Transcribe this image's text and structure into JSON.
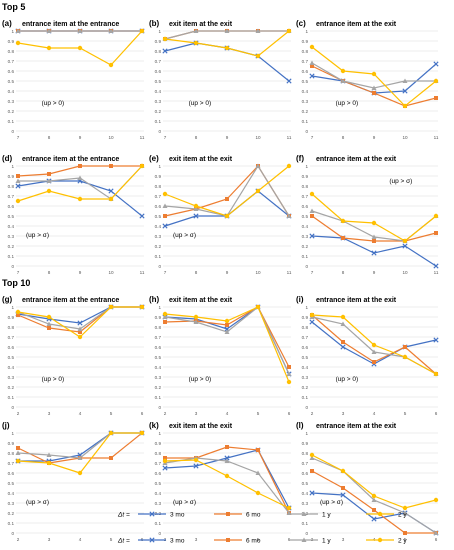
{
  "sections": {
    "top5": "Top 5",
    "top10": "Top 10"
  },
  "legend": {
    "label": "Δt =",
    "entries": [
      "3 mo",
      "6 mo",
      "1 y",
      "2 y"
    ],
    "colors": [
      "#4472c4",
      "#ed7d31",
      "#a5a5a5",
      "#ffc000"
    ]
  },
  "chart_data": [
    {
      "type": "line",
      "panel": "(a)",
      "title": "entrance item at the entrance",
      "annotation": "(up > 0)",
      "x": [
        7,
        8,
        9,
        10,
        11
      ],
      "ylim": [
        0,
        1
      ],
      "yticks": [
        0,
        0.1,
        0.2,
        0.3,
        0.4,
        0.5,
        0.6,
        0.7,
        0.8,
        0.9,
        1
      ],
      "series": [
        {
          "name": "3 mo",
          "values": [
            1,
            1,
            1,
            1,
            1
          ]
        },
        {
          "name": "6 mo",
          "values": [
            1,
            1,
            1,
            1,
            1
          ]
        },
        {
          "name": "1 y",
          "values": [
            1,
            1,
            1,
            1,
            1
          ]
        },
        {
          "name": "2 y",
          "values": [
            0.88,
            0.83,
            0.83,
            0.66,
            1
          ]
        }
      ]
    },
    {
      "type": "line",
      "panel": "(b)",
      "title": "exit item at the exit",
      "annotation": "(up > 0)",
      "x": [
        7,
        8,
        9,
        10,
        11
      ],
      "ylim": [
        0,
        1
      ],
      "yticks": [
        0,
        0.1,
        0.2,
        0.3,
        0.4,
        0.5,
        0.6,
        0.7,
        0.8,
        0.9,
        1
      ],
      "series": [
        {
          "name": "3 mo",
          "values": [
            0.8,
            0.88,
            0.83,
            0.75,
            0.5
          ]
        },
        {
          "name": "6 mo",
          "values": [
            0.92,
            1,
            1,
            1,
            1
          ]
        },
        {
          "name": "1 y",
          "values": [
            0.92,
            1,
            1,
            1,
            1
          ]
        },
        {
          "name": "2 y",
          "values": [
            0.92,
            0.88,
            0.83,
            0.75,
            1
          ]
        }
      ]
    },
    {
      "type": "line",
      "panel": "(c)",
      "title": "entrance  item at the exit",
      "annotation": "(up > 0)",
      "x": [
        7,
        8,
        9,
        10,
        11
      ],
      "ylim": [
        0,
        1
      ],
      "yticks": [
        0,
        0.1,
        0.2,
        0.3,
        0.4,
        0.5,
        0.6,
        0.7,
        0.8,
        0.9,
        1
      ],
      "series": [
        {
          "name": "3 mo",
          "values": [
            0.55,
            0.5,
            0.38,
            0.4,
            0.67
          ]
        },
        {
          "name": "6 mo",
          "values": [
            0.65,
            0.5,
            0.38,
            0.25,
            0.33
          ]
        },
        {
          "name": "1 y",
          "values": [
            0.68,
            0.5,
            0.43,
            0.5,
            0.5
          ]
        },
        {
          "name": "2 y",
          "values": [
            0.84,
            0.6,
            0.57,
            0.25,
            0.5
          ]
        }
      ]
    },
    {
      "type": "line",
      "panel": "(d)",
      "title": "entrance item at the entrance",
      "annotation": "(up > σ)",
      "x": [
        7,
        8,
        9,
        10,
        11
      ],
      "ylim": [
        0,
        1
      ],
      "yticks": [
        0,
        0.1,
        0.2,
        0.3,
        0.4,
        0.5,
        0.6,
        0.7,
        0.8,
        0.9,
        1
      ],
      "series": [
        {
          "name": "3 mo",
          "values": [
            0.8,
            0.85,
            0.85,
            0.75,
            0.5
          ]
        },
        {
          "name": "6 mo",
          "values": [
            0.9,
            0.92,
            1,
            1,
            1
          ]
        },
        {
          "name": "1 y",
          "values": [
            0.85,
            0.85,
            0.88,
            0.67,
            1
          ]
        },
        {
          "name": "2 y",
          "values": [
            0.65,
            0.75,
            0.67,
            0.67,
            1
          ]
        }
      ]
    },
    {
      "type": "line",
      "panel": "(e)",
      "title": "exit item at the exit",
      "annotation": "(up > σ)",
      "x": [
        7,
        8,
        9,
        10,
        11
      ],
      "ylim": [
        0,
        1
      ],
      "yticks": [
        0,
        0.1,
        0.2,
        0.3,
        0.4,
        0.5,
        0.6,
        0.7,
        0.8,
        0.9,
        1
      ],
      "series": [
        {
          "name": "3 mo",
          "values": [
            0.4,
            0.5,
            0.5,
            0.75,
            0.5
          ]
        },
        {
          "name": "6 mo",
          "values": [
            0.5,
            0.57,
            0.67,
            1,
            0.5
          ]
        },
        {
          "name": "1 y",
          "values": [
            0.6,
            0.57,
            0.5,
            1,
            0.5
          ]
        },
        {
          "name": "2 y",
          "values": [
            0.72,
            0.6,
            0.5,
            0.75,
            1
          ]
        }
      ]
    },
    {
      "type": "line",
      "panel": "(f)",
      "title": "entrance  item at the exit",
      "annotation": "(up > σ)",
      "x": [
        7,
        8,
        9,
        10,
        11
      ],
      "ylim": [
        0,
        1
      ],
      "yticks": [
        0,
        0.1,
        0.2,
        0.3,
        0.4,
        0.5,
        0.6,
        0.7,
        0.8,
        0.9,
        1
      ],
      "series": [
        {
          "name": "3 mo",
          "values": [
            0.3,
            0.28,
            0.13,
            0.2,
            0
          ]
        },
        {
          "name": "6 mo",
          "values": [
            0.5,
            0.28,
            0.25,
            0.25,
            0.33
          ]
        },
        {
          "name": "1 y",
          "values": [
            0.55,
            0.45,
            0.29,
            0.25,
            0.5
          ]
        },
        {
          "name": "2 y",
          "values": [
            0.72,
            0.45,
            0.43,
            0.25,
            0.5
          ]
        }
      ]
    },
    {
      "type": "line",
      "panel": "(g)",
      "title": "entrance item at the entrance",
      "annotation": "(up > 0)",
      "x": [
        2,
        3,
        4,
        5,
        6
      ],
      "ylim": [
        0,
        1
      ],
      "yticks": [
        0,
        0.1,
        0.2,
        0.3,
        0.4,
        0.5,
        0.6,
        0.7,
        0.8,
        0.9,
        1
      ],
      "series": [
        {
          "name": "3 mo",
          "values": [
            0.93,
            0.88,
            0.84,
            1,
            1
          ]
        },
        {
          "name": "6 mo",
          "values": [
            0.92,
            0.79,
            0.75,
            1,
            1
          ]
        },
        {
          "name": "1 y",
          "values": [
            0.95,
            0.83,
            0.78,
            1,
            1
          ]
        },
        {
          "name": "2 y",
          "values": [
            0.95,
            0.9,
            0.7,
            1,
            1
          ]
        }
      ]
    },
    {
      "type": "line",
      "panel": "(h)",
      "title": "exit item at the exit",
      "annotation": "(up > 0)",
      "x": [
        2,
        3,
        4,
        5,
        6
      ],
      "ylim": [
        0,
        1
      ],
      "yticks": [
        0,
        0.1,
        0.2,
        0.3,
        0.4,
        0.5,
        0.6,
        0.7,
        0.8,
        0.9,
        1
      ],
      "series": [
        {
          "name": "3 mo",
          "values": [
            0.9,
            0.88,
            0.78,
            1,
            0.33
          ]
        },
        {
          "name": "6 mo",
          "values": [
            0.85,
            0.86,
            0.82,
            1,
            0.4
          ]
        },
        {
          "name": "1 y",
          "values": [
            0.9,
            0.85,
            0.75,
            1,
            0.33
          ]
        },
        {
          "name": "2 y",
          "values": [
            0.93,
            0.9,
            0.86,
            1,
            0.25
          ]
        }
      ]
    },
    {
      "type": "line",
      "panel": "(i)",
      "title": "entrance item at the exit",
      "annotation": "(up > 0)",
      "x": [
        2,
        3,
        4,
        5,
        6
      ],
      "ylim": [
        0,
        1
      ],
      "yticks": [
        0,
        0.1,
        0.2,
        0.3,
        0.4,
        0.5,
        0.6,
        0.7,
        0.8,
        0.9,
        1
      ],
      "series": [
        {
          "name": "3 mo",
          "values": [
            0.85,
            0.6,
            0.43,
            0.6,
            0.67
          ]
        },
        {
          "name": "6 mo",
          "values": [
            0.92,
            0.65,
            0.45,
            0.6,
            0.33
          ]
        },
        {
          "name": "1 y",
          "values": [
            0.9,
            0.83,
            0.55,
            0.5,
            0.33
          ]
        },
        {
          "name": "2 y",
          "values": [
            0.92,
            0.9,
            0.62,
            0.5,
            0.33
          ]
        }
      ]
    },
    {
      "type": "line",
      "panel": "(j)",
      "title": "",
      "annotation": "(up > σ)",
      "x": [
        2,
        3,
        4,
        5,
        6
      ],
      "ylim": [
        0,
        1
      ],
      "yticks": [
        0,
        0.1,
        0.2,
        0.3,
        0.4,
        0.5,
        0.6,
        0.7,
        0.8,
        0.9,
        1
      ],
      "series": [
        {
          "name": "3 mo",
          "values": [
            0.72,
            0.72,
            0.78,
            1,
            1
          ]
        },
        {
          "name": "6 mo",
          "values": [
            0.85,
            0.7,
            0.75,
            0.75,
            1
          ]
        },
        {
          "name": "1 y",
          "values": [
            0.8,
            0.78,
            0.75,
            1,
            1
          ]
        },
        {
          "name": "2 y",
          "values": [
            0.72,
            0.7,
            0.6,
            1,
            1
          ]
        }
      ]
    },
    {
      "type": "line",
      "panel": "(k)",
      "title": "exit item at the exit",
      "annotation": "(up > σ)",
      "x": [
        2,
        3,
        4,
        5,
        6
      ],
      "ylim": [
        0,
        1
      ],
      "yticks": [
        0,
        0.1,
        0.2,
        0.3,
        0.4,
        0.5,
        0.6,
        0.7,
        0.8,
        0.9,
        1
      ],
      "series": [
        {
          "name": "3 mo",
          "values": [
            0.65,
            0.67,
            0.75,
            0.83,
            0.25
          ]
        },
        {
          "name": "6 mo",
          "values": [
            0.75,
            0.75,
            0.86,
            0.83,
            0.2
          ]
        },
        {
          "name": "1 y",
          "values": [
            0.7,
            0.75,
            0.72,
            0.6,
            0.2
          ]
        },
        {
          "name": "2 y",
          "values": [
            0.72,
            0.73,
            0.57,
            0.4,
            0.25
          ]
        }
      ]
    },
    {
      "type": "line",
      "panel": "(l)",
      "title": "entrance item at the exit",
      "annotation": "(up > σ)",
      "x": [
        2,
        3,
        4,
        5,
        6
      ],
      "ylim": [
        0,
        1
      ],
      "yticks": [
        0,
        0.1,
        0.2,
        0.3,
        0.4,
        0.5,
        0.6,
        0.7,
        0.8,
        0.9,
        1
      ],
      "series": [
        {
          "name": "3 mo",
          "values": [
            0.4,
            0.38,
            0.14,
            0.2,
            0
          ]
        },
        {
          "name": "6 mo",
          "values": [
            0.62,
            0.45,
            0.23,
            0,
            0
          ]
        },
        {
          "name": "1 y",
          "values": [
            0.75,
            0.62,
            0.33,
            0.2,
            0
          ]
        },
        {
          "name": "2 y",
          "values": [
            0.78,
            0.62,
            0.37,
            0.25,
            0.33
          ]
        }
      ]
    }
  ]
}
